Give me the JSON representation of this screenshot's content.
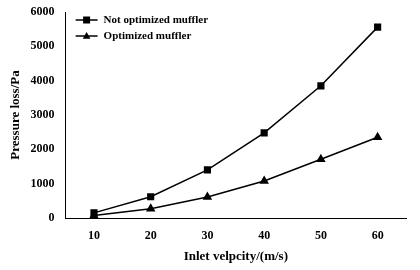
{
  "chart_data": {
    "type": "line",
    "x_label": "Inlet velpcity/(m/s)",
    "y_label": "Pressure loss/Pa",
    "categories": [
      "10",
      "20",
      "30",
      "40",
      "50",
      "60"
    ],
    "series": [
      {
        "name": "Not optimized muffler",
        "color": "#000000",
        "marker": "square",
        "line_style": "solid",
        "values": [
          150,
          620,
          1400,
          2480,
          3850,
          5560
        ]
      },
      {
        "name": "Optimized muffler",
        "color": "#000000",
        "marker": "triangle",
        "line_style": "solid",
        "values": [
          70,
          270,
          610,
          1080,
          1710,
          2350
        ]
      }
    ],
    "ylim": [
      0,
      6000
    ],
    "yticks": [
      0,
      1000,
      2000,
      3000,
      4000,
      5000,
      6000
    ],
    "grid": false,
    "legend": "top-left"
  }
}
